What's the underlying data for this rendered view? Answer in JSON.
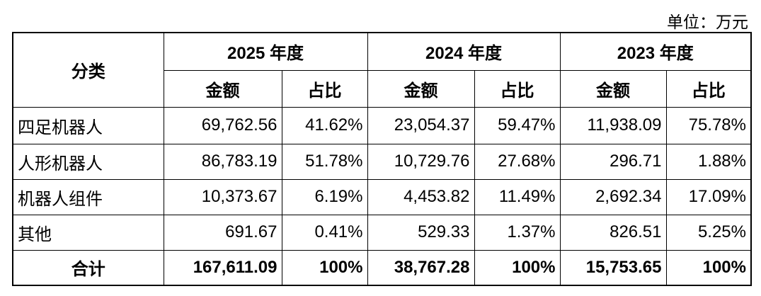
{
  "unit": "单位：万元",
  "table": {
    "category_header": "分类",
    "years": [
      "2025 年度",
      "2024 年度",
      "2023 年度"
    ],
    "subheaders": [
      "金额",
      "占比",
      "金额",
      "占比",
      "金额",
      "占比"
    ],
    "rows": [
      [
        "四足机器人",
        "69,762.56",
        "41.62%",
        "23,054.37",
        "59.47%",
        "11,938.09",
        "75.78%"
      ],
      [
        "人形机器人",
        "86,783.19",
        "51.78%",
        "10,729.76",
        "27.68%",
        "296.71",
        "1.88%"
      ],
      [
        "机器人组件",
        "10,373.67",
        "6.19%",
        "4,453.82",
        "11.49%",
        "2,692.34",
        "17.09%"
      ],
      [
        "其他",
        "691.67",
        "0.41%",
        "529.33",
        "1.37%",
        "826.51",
        "5.25%"
      ]
    ],
    "total": [
      "合计",
      "167,611.09",
      "100%",
      "38,767.28",
      "100%",
      "15,753.65",
      "100%"
    ]
  }
}
